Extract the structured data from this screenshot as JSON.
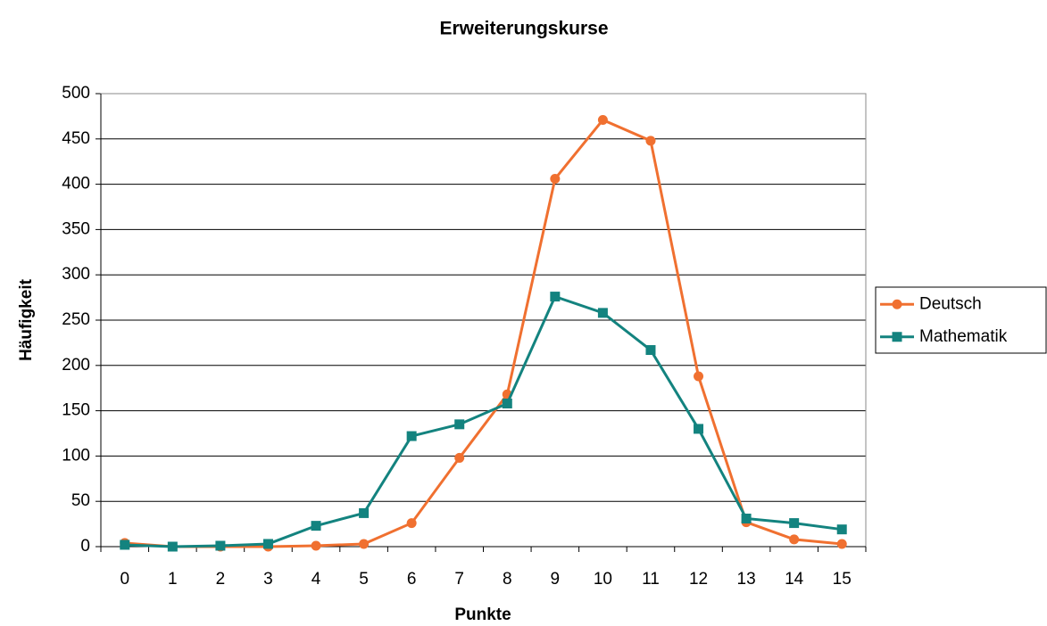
{
  "chart_data": {
    "type": "line",
    "title": "Erweiterungskurse",
    "x_label": "Punkte",
    "y_label": "Häufigkeit",
    "categories": [
      "0",
      "1",
      "2",
      "3",
      "4",
      "5",
      "6",
      "7",
      "8",
      "9",
      "10",
      "11",
      "12",
      "13",
      "14",
      "15"
    ],
    "series": [
      {
        "name": "Deutsch",
        "color": "#f07030",
        "marker": "circle",
        "values": [
          4,
          0,
          0,
          0,
          1,
          3,
          26,
          98,
          168,
          406,
          471,
          448,
          188,
          27,
          8,
          3
        ]
      },
      {
        "name": "Mathematik",
        "color": "#13837f",
        "marker": "square",
        "values": [
          2,
          0,
          1,
          3,
          23,
          37,
          122,
          135,
          158,
          276,
          258,
          217,
          130,
          31,
          26,
          19
        ]
      }
    ],
    "ylim": [
      0,
      500
    ],
    "yticks": [
      0,
      50,
      100,
      150,
      200,
      250,
      300,
      350,
      400,
      450,
      500
    ],
    "grid": true,
    "legend": "right"
  }
}
